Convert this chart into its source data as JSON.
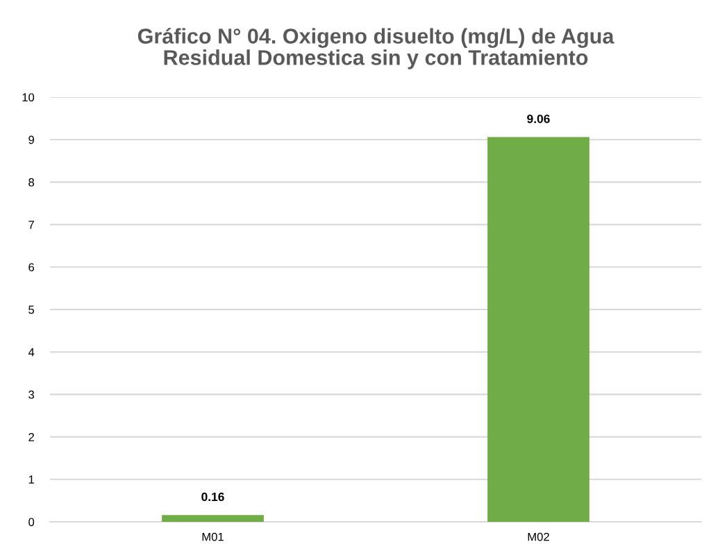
{
  "chart_data": {
    "type": "bar",
    "title": "Gráfico N° 04. Oxigeno disuelto (mg/L) de Agua Residual Domestica sin y con Tratamiento",
    "categories": [
      "M01",
      "M02"
    ],
    "values": [
      0.16,
      9.06
    ],
    "color": "#70ad47",
    "ylim": [
      0,
      10
    ],
    "yticks": [
      0,
      1,
      2,
      3,
      4,
      5,
      6,
      7,
      8,
      9,
      10
    ],
    "grid": "y",
    "data_labels": true
  }
}
